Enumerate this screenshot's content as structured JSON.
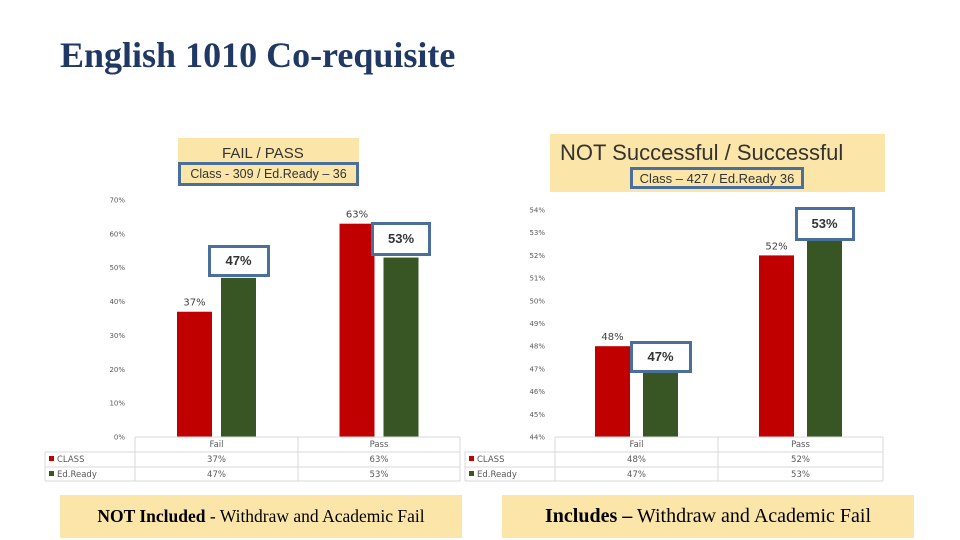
{
  "slide": {
    "title": "English 1010  Co-requisite",
    "note_left": {
      "bold": "NOT Included",
      "rest": " - Withdraw and Academic Fail"
    },
    "note_right": {
      "bold": "Includes –",
      "rest": " Withdraw and Academic Fail"
    }
  },
  "colors": {
    "class": "#c00000",
    "edready": "#375623",
    "band": "#fbe5a8",
    "highlight_border": "#4a6f9b"
  },
  "chart_data": [
    {
      "type": "bar",
      "title": "FAIL / PASS",
      "subtitle": "Class - 309 / Ed.Ready – 36",
      "categories": [
        "Fail",
        "Pass"
      ],
      "series": [
        {
          "name": "CLASS",
          "values": [
            37,
            63
          ],
          "labels": [
            "37%",
            "63%"
          ],
          "color": "#c00000"
        },
        {
          "name": "Ed.Ready",
          "values": [
            47,
            53
          ],
          "labels": [
            "47%",
            "53%"
          ],
          "color": "#375623"
        }
      ],
      "ylim": [
        0,
        70
      ],
      "yticks": [
        "0%",
        "10%",
        "20%",
        "30%",
        "40%",
        "50%",
        "60%",
        "70%"
      ],
      "highlighted": [
        "47%",
        "53%"
      ],
      "data_table": true,
      "grid": false
    },
    {
      "type": "bar",
      "title": "NOT Successful / Successful",
      "subtitle": "Class – 427 / Ed.Ready 36",
      "categories": [
        "Fail",
        "Pass"
      ],
      "series": [
        {
          "name": "CLASS",
          "values": [
            48,
            52
          ],
          "labels": [
            "48%",
            "52%"
          ],
          "color": "#c00000"
        },
        {
          "name": "Ed.Ready",
          "values": [
            47,
            53
          ],
          "labels": [
            "47%",
            "53%"
          ],
          "color": "#375623"
        }
      ],
      "ylim": [
        44,
        54
      ],
      "yticks": [
        "44%",
        "45%",
        "46%",
        "47%",
        "48%",
        "49%",
        "50%",
        "51%",
        "52%",
        "53%",
        "54%"
      ],
      "highlighted": [
        "47%",
        "53%"
      ],
      "data_table": true,
      "grid": false
    }
  ]
}
